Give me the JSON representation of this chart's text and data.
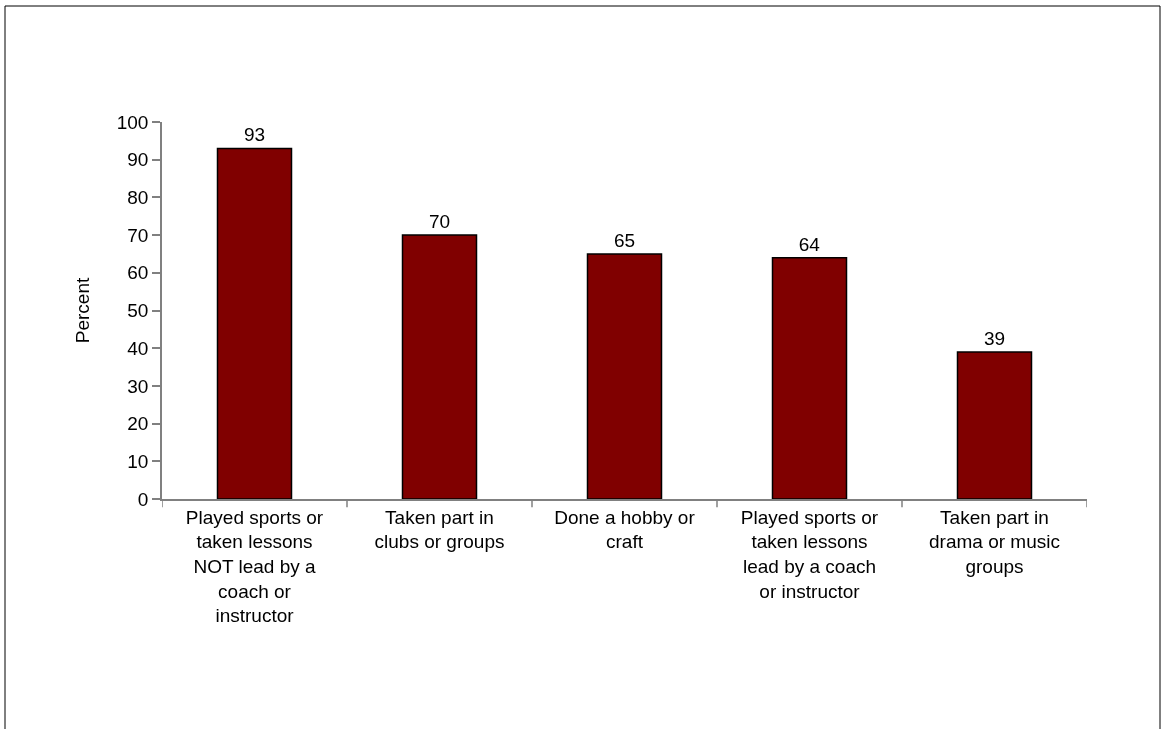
{
  "chart_data": {
    "type": "bar",
    "ylabel": "Percent",
    "categories": [
      "Played sports or taken lessons NOT lead by a coach or instructor",
      "Taken part in clubs or groups",
      "Done a hobby or craft",
      "Played sports or taken lessons lead by a coach or instructor",
      "Taken part in drama or music groups"
    ],
    "values": [
      93,
      70,
      65,
      64,
      39
    ],
    "color": "#800000",
    "ylim": [
      0,
      100
    ],
    "yticks": [
      0,
      10,
      20,
      30,
      40,
      50,
      60,
      70,
      80,
      90,
      100
    ],
    "data_labels": true
  }
}
